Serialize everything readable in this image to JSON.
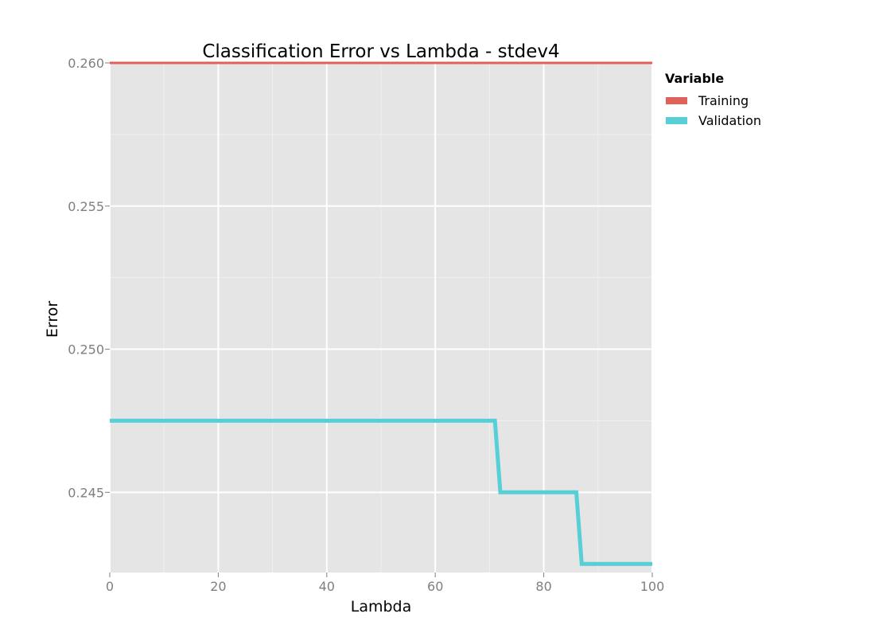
{
  "chart_data": {
    "type": "line",
    "title": "Classification Error vs Lambda - stdev4",
    "xlabel": "Lambda",
    "ylabel": "Error",
    "xlim": [
      0,
      100
    ],
    "ylim": [
      0.2422,
      0.26
    ],
    "x_ticks": [
      0,
      20,
      40,
      60,
      80,
      100
    ],
    "x_tick_labels": [
      "0",
      "20",
      "40",
      "60",
      "80",
      "100"
    ],
    "y_ticks": [
      0.245,
      0.25,
      0.255,
      0.26
    ],
    "y_tick_labels": [
      "0.245",
      "0.250",
      "0.255",
      "0.260"
    ],
    "grid": true,
    "legend": {
      "title": "Variable",
      "position": "right"
    },
    "series": [
      {
        "name": "Training",
        "color": "#e06159",
        "points": [
          [
            0,
            0.26
          ],
          [
            100,
            0.26
          ]
        ]
      },
      {
        "name": "Validation",
        "color": "#56cfd6",
        "points": [
          [
            0,
            0.2475
          ],
          [
            71,
            0.2475
          ],
          [
            72,
            0.245
          ],
          [
            86,
            0.245
          ],
          [
            87,
            0.2425
          ],
          [
            100,
            0.2425
          ]
        ]
      }
    ]
  }
}
